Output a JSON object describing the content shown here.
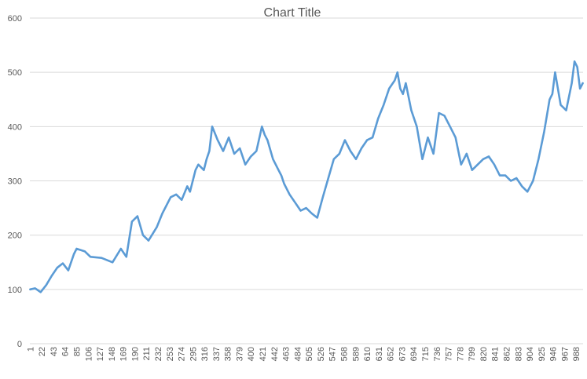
{
  "chart_data": {
    "type": "line",
    "title": "Chart Title",
    "xlabel": "",
    "ylabel": "",
    "ylim": [
      0,
      600
    ],
    "yticks": [
      0,
      100,
      200,
      300,
      400,
      500,
      600
    ],
    "x_tick_labels": [
      "1",
      "22",
      "43",
      "64",
      "85",
      "106",
      "127",
      "148",
      "169",
      "190",
      "211",
      "232",
      "253",
      "274",
      "295",
      "316",
      "337",
      "358",
      "379",
      "400",
      "421",
      "442",
      "463",
      "484",
      "505",
      "526",
      "547",
      "568",
      "589",
      "610",
      "631",
      "652",
      "673",
      "694",
      "715",
      "736",
      "757",
      "778",
      "799",
      "820",
      "841",
      "862",
      "883",
      "904",
      "925",
      "946",
      "967",
      "988"
    ],
    "x_count": 1000,
    "grid": true,
    "legend": "none",
    "series_color": "#5b9bd5",
    "series": [
      {
        "x": [
          1,
          10,
          20,
          30,
          40,
          50,
          60,
          70,
          80,
          85,
          100,
          110,
          130,
          150,
          165,
          175,
          185,
          195,
          205,
          215,
          230,
          240,
          255,
          265,
          275,
          285,
          290,
          300,
          305,
          315,
          320,
          325,
          330,
          340,
          350,
          360,
          370,
          380,
          390,
          400,
          410,
          420,
          425,
          430,
          440,
          450,
          455,
          460,
          470,
          480,
          490,
          500,
          510,
          520,
          530,
          540,
          550,
          560,
          570,
          580,
          590,
          600,
          610,
          620,
          630,
          640,
          650,
          660,
          665,
          670,
          675,
          680,
          690,
          700,
          710,
          720,
          730,
          740,
          750,
          760,
          770,
          780,
          790,
          800,
          810,
          820,
          830,
          840,
          850,
          860,
          870,
          880,
          890,
          900,
          910,
          920,
          930,
          940,
          945,
          950,
          960,
          970,
          980,
          985,
          990,
          995,
          1000
        ],
        "values": [
          100,
          102,
          95,
          108,
          125,
          140,
          148,
          135,
          165,
          175,
          170,
          160,
          158,
          150,
          175,
          160,
          225,
          235,
          200,
          190,
          215,
          240,
          270,
          275,
          265,
          290,
          280,
          320,
          330,
          320,
          340,
          355,
          400,
          375,
          355,
          380,
          350,
          360,
          330,
          345,
          355,
          400,
          385,
          375,
          340,
          320,
          310,
          295,
          275,
          260,
          245,
          250,
          240,
          232,
          270,
          305,
          340,
          350,
          375,
          355,
          340,
          360,
          375,
          380,
          415,
          440,
          470,
          485,
          500,
          470,
          460,
          480,
          430,
          400,
          340,
          380,
          350,
          425,
          420,
          400,
          380,
          330,
          350,
          320,
          330,
          340,
          345,
          330,
          310,
          310,
          300,
          305,
          290,
          280,
          300,
          340,
          390,
          450,
          460,
          500,
          440,
          430,
          480,
          520,
          510,
          470,
          480
        ]
      }
    ]
  }
}
